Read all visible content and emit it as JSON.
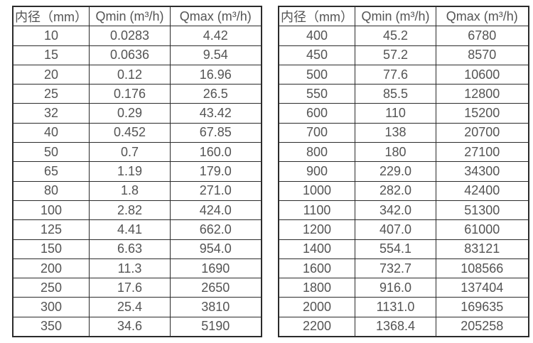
{
  "page": {
    "background_color": "#ffffff",
    "text_color": "#545454",
    "border_color": "#2b2b2b"
  },
  "tables": [
    {
      "name": "small-diameters",
      "headers": [
        "内径（mm）",
        "Qmin (m³/h)",
        "Qmax (m³/h)"
      ],
      "rows": [
        [
          "10",
          "0.0283",
          "4.42"
        ],
        [
          "15",
          "0.0636",
          "9.54"
        ],
        [
          "20",
          "0.12",
          "16.96"
        ],
        [
          "25",
          "0.176",
          "26.5"
        ],
        [
          "32",
          "0.29",
          "43.42"
        ],
        [
          "40",
          "0.452",
          "67.85"
        ],
        [
          "50",
          "0.7",
          "160.0"
        ],
        [
          "65",
          "1.19",
          "179.0"
        ],
        [
          "80",
          "1.8",
          "271.0"
        ],
        [
          "100",
          "2.82",
          "424.0"
        ],
        [
          "125",
          "4.41",
          "662.0"
        ],
        [
          "150",
          "6.63",
          "954.0"
        ],
        [
          "200",
          "11.3",
          "1690"
        ],
        [
          "250",
          "17.6",
          "2650"
        ],
        [
          "300",
          "25.4",
          "3810"
        ],
        [
          "350",
          "34.6",
          "5190"
        ]
      ]
    },
    {
      "name": "large-diameters",
      "headers": [
        "内径（mm）",
        "Qmin (m³/h)",
        "Qmax (m³/h)"
      ],
      "rows": [
        [
          "400",
          "45.2",
          "6780"
        ],
        [
          "450",
          "57.2",
          "8570"
        ],
        [
          "500",
          "77.6",
          "10600"
        ],
        [
          "550",
          "85.5",
          "12800"
        ],
        [
          "600",
          "110",
          "15200"
        ],
        [
          "700",
          "138",
          "20700"
        ],
        [
          "800",
          "180",
          "27100"
        ],
        [
          "900",
          "229.0",
          "34300"
        ],
        [
          "1000",
          "282.0",
          "42400"
        ],
        [
          "1100",
          "342.0",
          "51300"
        ],
        [
          "1200",
          "407.0",
          "61000"
        ],
        [
          "1400",
          "554.1",
          "83121"
        ],
        [
          "1600",
          "732.7",
          "108566"
        ],
        [
          "1800",
          "916.0",
          "137404"
        ],
        [
          "2000",
          "1131.0",
          "169635"
        ],
        [
          "2200",
          "1368.4",
          "205258"
        ]
      ]
    }
  ]
}
